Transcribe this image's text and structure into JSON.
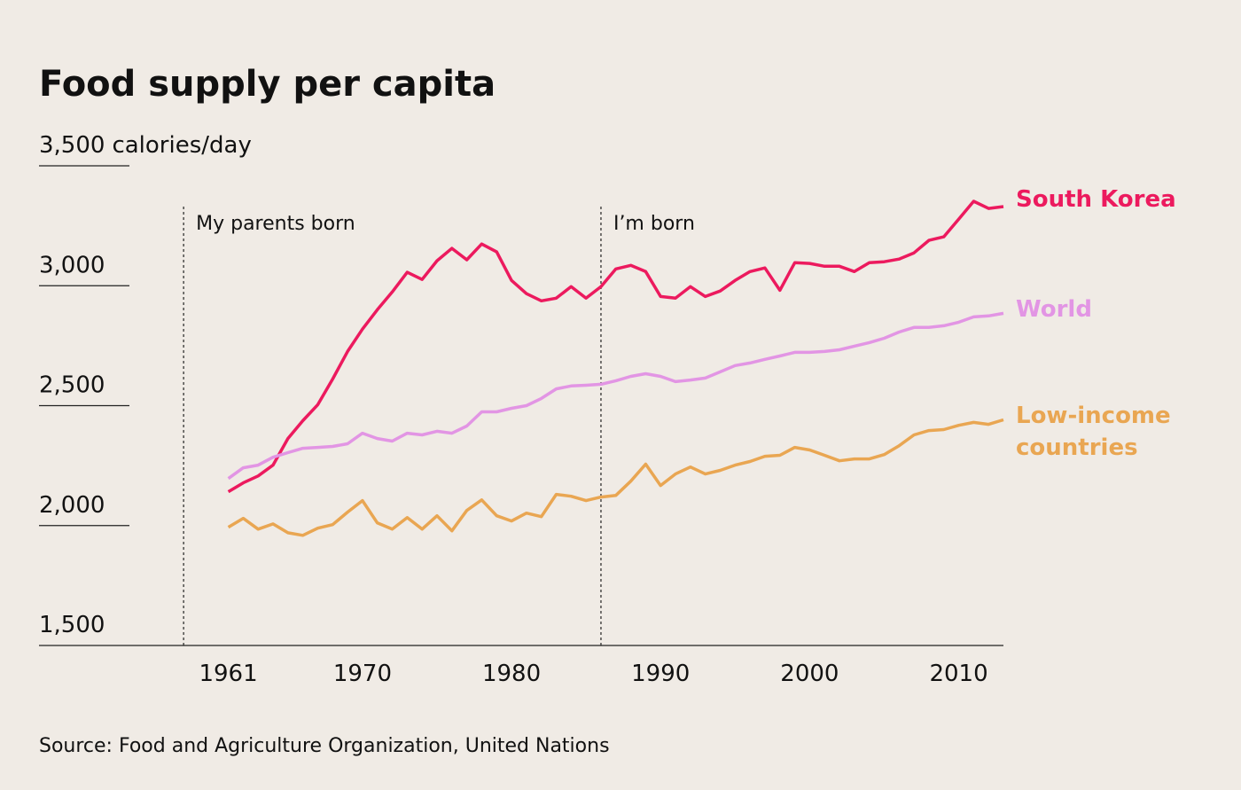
{
  "chart_data": {
    "type": "line",
    "title": "Food supply per capita",
    "y_axis_label": "calories/day",
    "source": "Source: Food and Agriculture Organization, United Nations",
    "x": [
      1961,
      1962,
      1963,
      1964,
      1965,
      1966,
      1967,
      1968,
      1969,
      1970,
      1971,
      1972,
      1973,
      1974,
      1975,
      1976,
      1977,
      1978,
      1979,
      1980,
      1981,
      1982,
      1983,
      1984,
      1985,
      1986,
      1987,
      1988,
      1989,
      1990,
      1991,
      1992,
      1993,
      1994,
      1995,
      1996,
      1997,
      1998,
      1999,
      2000,
      2001,
      2002,
      2003,
      2004,
      2005,
      2006,
      2007,
      2008,
      2009,
      2010,
      2011,
      2012,
      2013
    ],
    "series": [
      {
        "name": "South Korea",
        "color": "#ec1a5e",
        "values": [
          2141,
          2178,
          2207,
          2252,
          2363,
          2437,
          2504,
          2611,
          2726,
          2819,
          2900,
          2974,
          3056,
          3026,
          3104,
          3156,
          3108,
          3174,
          3141,
          3022,
          2967,
          2937,
          2948,
          2996,
          2948,
          2996,
          3070,
          3085,
          3059,
          2955,
          2948,
          2996,
          2955,
          2978,
          3022,
          3059,
          3074,
          2981,
          3096,
          3093,
          3081,
          3081,
          3059,
          3096,
          3100,
          3111,
          3137,
          3189,
          3204,
          3278,
          3352,
          3322,
          3330
        ]
      },
      {
        "name": "World",
        "color": "#e295e4",
        "values": [
          2196,
          2241,
          2252,
          2285,
          2304,
          2322,
          2326,
          2330,
          2341,
          2385,
          2363,
          2352,
          2385,
          2378,
          2393,
          2385,
          2415,
          2474,
          2474,
          2489,
          2500,
          2530,
          2570,
          2582,
          2585,
          2589,
          2604,
          2622,
          2633,
          2622,
          2600,
          2607,
          2615,
          2641,
          2667,
          2678,
          2693,
          2707,
          2722,
          2722,
          2726,
          2733,
          2748,
          2763,
          2781,
          2807,
          2826,
          2826,
          2833,
          2848,
          2870,
          2874,
          2885
        ]
      },
      {
        "name": "Low-income countries",
        "color": "#e9a652",
        "values": [
          1993,
          2030,
          1985,
          2007,
          1970,
          1959,
          1989,
          2004,
          2056,
          2104,
          2011,
          1985,
          2033,
          1985,
          2041,
          1978,
          2063,
          2107,
          2041,
          2019,
          2052,
          2037,
          2130,
          2122,
          2104,
          2119,
          2126,
          2185,
          2256,
          2167,
          2215,
          2244,
          2215,
          2230,
          2252,
          2267,
          2289,
          2293,
          2326,
          2315,
          2293,
          2270,
          2278,
          2278,
          2296,
          2333,
          2378,
          2396,
          2400,
          2418,
          2430,
          2422,
          2441
        ]
      }
    ],
    "xlim": [
      1948.3,
      2013
    ],
    "xticks": [
      1961,
      1970,
      1980,
      1990,
      2000,
      2010
    ],
    "ylim": [
      1500,
      3500
    ],
    "yticks": [
      {
        "value": 1500,
        "label": "1,500"
      },
      {
        "value": 2000,
        "label": "2,000"
      },
      {
        "value": 2500,
        "label": "2,500"
      },
      {
        "value": 3000,
        "label": "3,000"
      },
      {
        "value": 3500,
        "label": "3,500"
      }
    ],
    "grid": true,
    "annotations": [
      {
        "x": 1958,
        "label": "My parents born"
      },
      {
        "x": 1986,
        "label": "I’m born"
      }
    ]
  }
}
